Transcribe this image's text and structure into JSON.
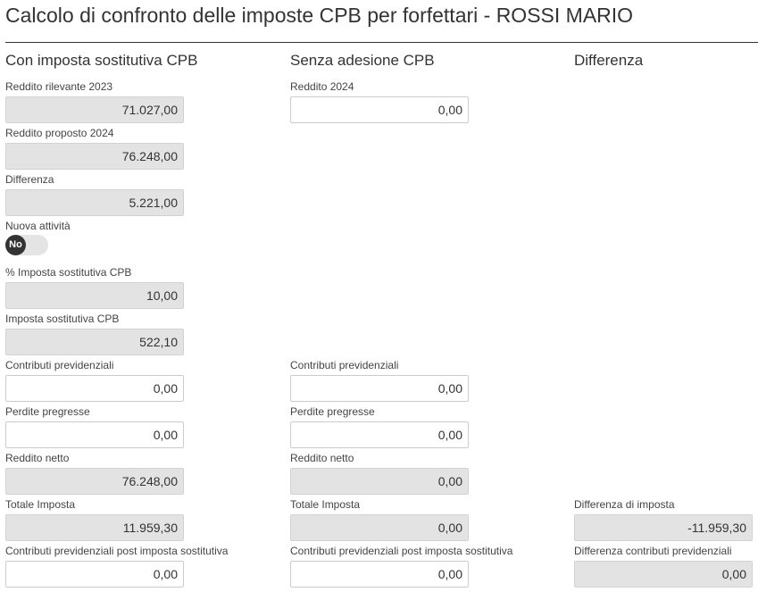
{
  "title": "Calcolo di confronto delle imposte CPB per forfettari - ROSSI MARIO",
  "columns": {
    "cpb": "Con imposta sostitutiva CPB",
    "senza": "Senza adesione CPB",
    "diff": "Differenza"
  },
  "cpb": {
    "reddito_rilevante": {
      "label": "Reddito rilevante 2023",
      "value": "71.027,00"
    },
    "reddito_proposto": {
      "label": "Reddito proposto 2024",
      "value": "76.248,00"
    },
    "differenza": {
      "label": "Differenza",
      "value": "5.221,00"
    },
    "nuova_attivita": {
      "label": "Nuova attività",
      "value": "No"
    },
    "perc_imposta": {
      "label": "% Imposta sostitutiva CPB",
      "value": "10,00"
    },
    "imposta_sostitutiva": {
      "label": "Imposta sostitutiva CPB",
      "value": "522,10"
    },
    "contributi": {
      "label": "Contributi previdenziali",
      "value": "0,00"
    },
    "perdite": {
      "label": "Perdite pregresse",
      "value": "0,00"
    },
    "reddito_netto": {
      "label": "Reddito netto",
      "value": "76.248,00"
    },
    "totale_imposta": {
      "label": "Totale Imposta",
      "value": "11.959,30"
    },
    "contributi_post": {
      "label": "Contributi previdenziali post imposta sostitutiva",
      "value": "0,00"
    }
  },
  "senza": {
    "reddito": {
      "label": "Reddito 2024",
      "value": "0,00"
    },
    "contributi": {
      "label": "Contributi previdenziali",
      "value": "0,00"
    },
    "perdite": {
      "label": "Perdite pregresse",
      "value": "0,00"
    },
    "reddito_netto": {
      "label": "Reddito netto",
      "value": "0,00"
    },
    "totale_imposta": {
      "label": "Totale Imposta",
      "value": "0,00"
    },
    "contributi_post": {
      "label": "Contributi previdenziali post imposta sostitutiva",
      "value": "0,00"
    }
  },
  "diff": {
    "imposta": {
      "label": "Differenza di imposta",
      "value": "-11.959,30"
    },
    "contributi": {
      "label": "Differenza contributi previdenziali",
      "value": "0,00"
    }
  }
}
